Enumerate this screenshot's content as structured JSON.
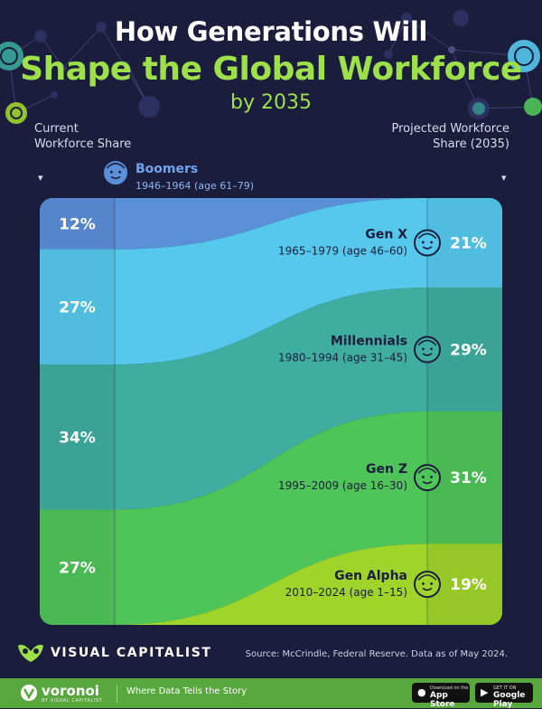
{
  "header": {
    "title_line1": "How Generations Will",
    "title_line2": "Shape the Global Workforce",
    "title_line3": "by 2035"
  },
  "left_label": "Current Workforce Share",
  "right_label": "Projected Workforce Share (2035)",
  "chart_data": {
    "type": "area",
    "subtype": "stacked-flow",
    "x": [
      "Current",
      "2035"
    ],
    "unit": "%",
    "series": [
      {
        "name": "Boomers",
        "years": "1946–1964 (age 61–79)",
        "values": [
          12,
          0
        ],
        "labels": [
          "12%",
          ""
        ],
        "color": "#5b8fd8"
      },
      {
        "name": "Gen X",
        "years": "1965–1979 (age 46–60)",
        "values": [
          27,
          21
        ],
        "labels": [
          "27%",
          "21%"
        ],
        "color": "#55c8ec"
      },
      {
        "name": "Millennials",
        "years": "1980–1994 (age 31–45)",
        "values": [
          34,
          29
        ],
        "labels": [
          "34%",
          "29%"
        ],
        "color": "#3fada0"
      },
      {
        "name": "Gen Z",
        "years": "1995–2009 (age 16–30)",
        "values": [
          27,
          31
        ],
        "labels": [
          "27%",
          "31%"
        ],
        "color": "#4fc459"
      },
      {
        "name": "Gen Alpha",
        "years": "2010–2024 (age 1–15)",
        "values": [
          0,
          19
        ],
        "labels": [
          "",
          "19%"
        ],
        "color": "#9fd52a"
      }
    ]
  },
  "footer": {
    "brand": "VISUAL CAPITALIST",
    "source": "Source: McCrindle, Federal Reserve. Data as of May 2024.",
    "voronoi": "voronoi",
    "by_vc": "BY VISUAL CAPITALIST",
    "tagline": "Where Data Tells the Story",
    "appstore_small": "Download on the",
    "appstore_big": "App Store",
    "googleplay_small": "GET IT ON",
    "googleplay_big": "Google Play"
  }
}
